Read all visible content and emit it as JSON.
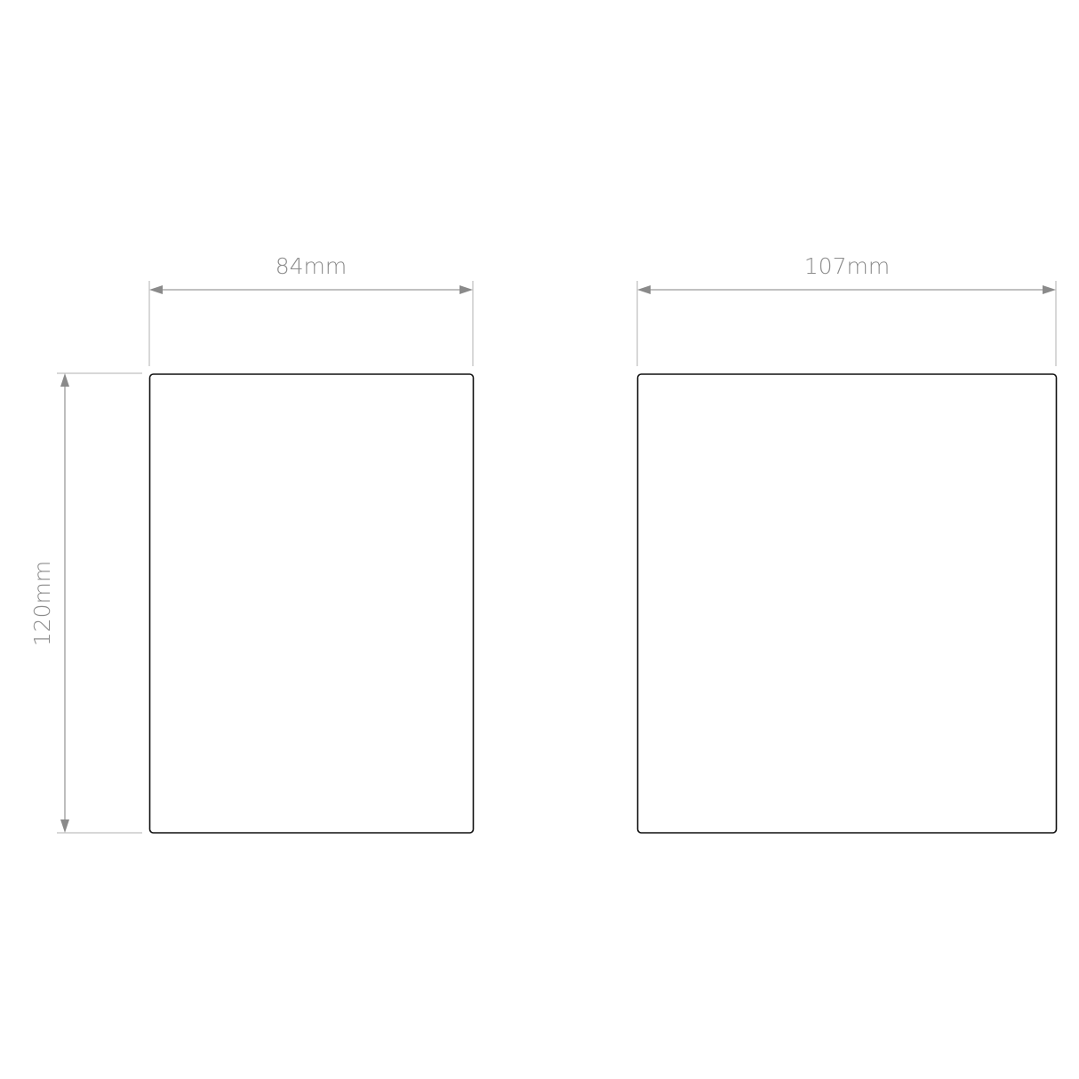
{
  "dimensions": {
    "left_width": "84mm",
    "right_width": "107mm",
    "height": "120mm"
  },
  "colors": {
    "dimension_line": "#9a9a9a",
    "outline": "#111111",
    "label": "#8c8c8c"
  }
}
